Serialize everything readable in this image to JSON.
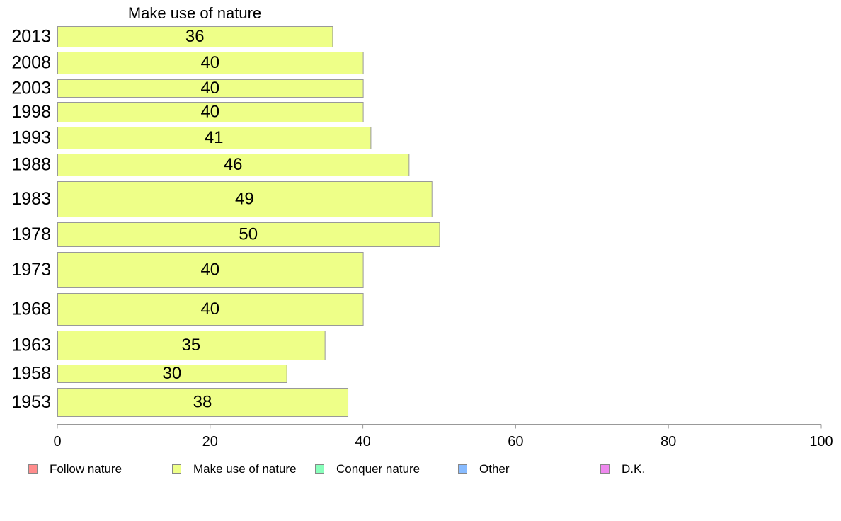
{
  "chart_data": {
    "type": "bar",
    "orientation": "horizontal",
    "panel_title": "Make use of nature",
    "categories": [
      "2013",
      "2008",
      "2003",
      "1998",
      "1993",
      "1988",
      "1983",
      "1978",
      "1973",
      "1968",
      "1963",
      "1958",
      "1953"
    ],
    "series": [
      {
        "name": "Make use of nature",
        "values": [
          36,
          40,
          40,
          40,
          41,
          46,
          49,
          50,
          40,
          40,
          35,
          30,
          38
        ],
        "value_labels": [
          "36",
          "40",
          "40",
          "40",
          "41",
          "46",
          "49",
          "50",
          "40",
          "40",
          "35",
          "30",
          "38"
        ],
        "color": "#EEFF88"
      }
    ],
    "xlim": [
      0,
      100
    ],
    "xticks": [
      "0",
      "20",
      "40",
      "60",
      "80",
      "100"
    ],
    "grid": false,
    "legend_position": "bottom",
    "legend": [
      {
        "label": "Follow nature",
        "color": "#FF8C8C"
      },
      {
        "label": "Make use of nature",
        "color": "#EEFF88"
      },
      {
        "label": "Conquer nature",
        "color": "#88FFBB"
      },
      {
        "label": "Other",
        "color": "#88BBFF"
      },
      {
        "label": "D.K.",
        "color": "#EE88EE"
      }
    ]
  }
}
